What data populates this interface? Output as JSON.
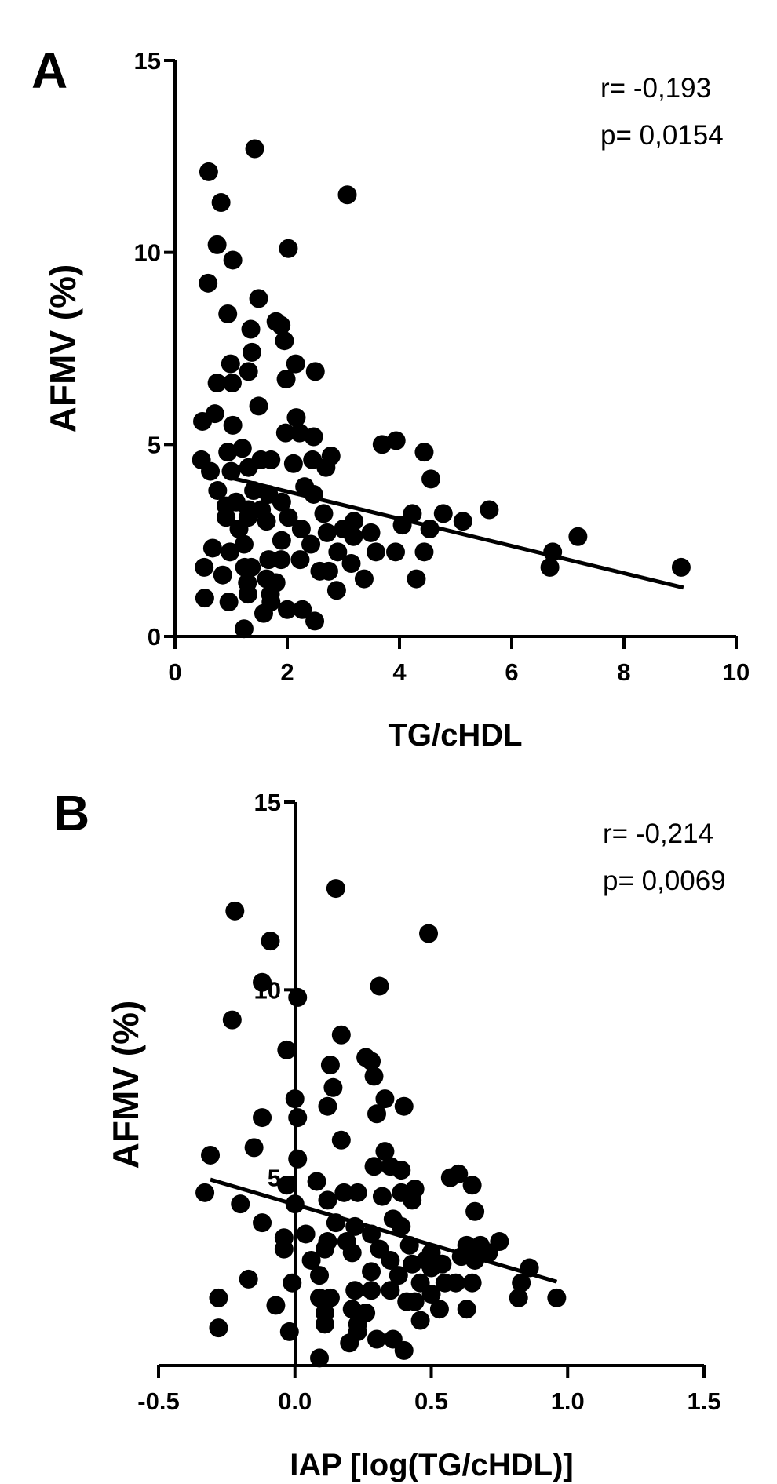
{
  "chart_data": [
    {
      "type": "scatter",
      "panel_label": "A",
      "xlabel": "TG/cHDL",
      "ylabel": "AFMV (%)",
      "xlim": [
        0,
        10
      ],
      "ylim": [
        0,
        15
      ],
      "xticks": [
        "0",
        "2",
        "4",
        "6",
        "8",
        "10"
      ],
      "yticks": [
        "0",
        "5",
        "10",
        "15"
      ],
      "stats": {
        "r": "r= -0,193",
        "p": "p= 0,0154"
      },
      "regression": {
        "x": [
          1.0,
          9.06
        ],
        "y": [
          4.13,
          1.27
        ]
      },
      "color": "#000000",
      "points": [
        [
          0.6,
          12.1
        ],
        [
          1.42,
          12.7
        ],
        [
          0.82,
          11.3
        ],
        [
          3.07,
          11.5
        ],
        [
          0.75,
          10.2
        ],
        [
          2.02,
          10.1
        ],
        [
          1.03,
          9.8
        ],
        [
          0.59,
          9.2
        ],
        [
          1.49,
          8.8
        ],
        [
          0.94,
          8.4
        ],
        [
          1.8,
          8.2
        ],
        [
          1.89,
          8.1
        ],
        [
          1.35,
          8.0
        ],
        [
          1.95,
          7.7
        ],
        [
          1.37,
          7.4
        ],
        [
          0.99,
          7.1
        ],
        [
          2.15,
          7.1
        ],
        [
          2.5,
          6.9
        ],
        [
          1.31,
          6.9
        ],
        [
          1.98,
          6.7
        ],
        [
          0.75,
          6.6
        ],
        [
          1.02,
          6.6
        ],
        [
          1.49,
          6.0
        ],
        [
          0.49,
          5.6
        ],
        [
          0.71,
          5.8
        ],
        [
          1.03,
          5.5
        ],
        [
          2.16,
          5.7
        ],
        [
          1.97,
          5.3
        ],
        [
          2.22,
          5.3
        ],
        [
          2.47,
          5.2
        ],
        [
          3.69,
          5.0
        ],
        [
          3.94,
          5.1
        ],
        [
          0.47,
          4.6
        ],
        [
          0.63,
          4.3
        ],
        [
          0.94,
          4.8
        ],
        [
          1.2,
          4.9
        ],
        [
          1.71,
          4.6
        ],
        [
          1.53,
          4.6
        ],
        [
          2.11,
          4.5
        ],
        [
          2.45,
          4.6
        ],
        [
          2.78,
          4.7
        ],
        [
          2.69,
          4.4
        ],
        [
          4.44,
          4.8
        ],
        [
          4.56,
          4.1
        ],
        [
          1.0,
          4.3
        ],
        [
          1.31,
          4.4
        ],
        [
          0.76,
          3.8
        ],
        [
          2.31,
          3.9
        ],
        [
          2.47,
          3.7
        ],
        [
          1.4,
          3.8
        ],
        [
          1.67,
          3.7
        ],
        [
          0.91,
          3.4
        ],
        [
          1.09,
          3.5
        ],
        [
          1.31,
          3.3
        ],
        [
          1.54,
          3.3
        ],
        [
          1.9,
          3.5
        ],
        [
          0.91,
          3.1
        ],
        [
          1.3,
          3.1
        ],
        [
          1.63,
          3.0
        ],
        [
          2.02,
          3.1
        ],
        [
          2.65,
          3.2
        ],
        [
          3.19,
          3.0
        ],
        [
          4.23,
          3.2
        ],
        [
          4.78,
          3.2
        ],
        [
          5.13,
          3.0
        ],
        [
          5.6,
          3.3
        ],
        [
          4.05,
          2.9
        ],
        [
          4.54,
          2.8
        ],
        [
          1.14,
          2.8
        ],
        [
          2.25,
          2.8
        ],
        [
          2.71,
          2.7
        ],
        [
          3.0,
          2.8
        ],
        [
          3.18,
          2.6
        ],
        [
          3.49,
          2.7
        ],
        [
          7.18,
          2.6
        ],
        [
          0.67,
          2.3
        ],
        [
          0.98,
          2.2
        ],
        [
          1.23,
          2.4
        ],
        [
          1.9,
          2.5
        ],
        [
          2.42,
          2.4
        ],
        [
          2.9,
          2.2
        ],
        [
          3.58,
          2.2
        ],
        [
          3.93,
          2.2
        ],
        [
          4.44,
          2.2
        ],
        [
          6.73,
          2.2
        ],
        [
          0.52,
          1.8
        ],
        [
          0.85,
          1.6
        ],
        [
          1.24,
          1.8
        ],
        [
          1.36,
          1.8
        ],
        [
          1.67,
          2.0
        ],
        [
          1.89,
          2.0
        ],
        [
          2.23,
          2.0
        ],
        [
          2.58,
          1.7
        ],
        [
          2.74,
          1.7
        ],
        [
          3.14,
          1.9
        ],
        [
          6.68,
          1.8
        ],
        [
          9.02,
          1.8
        ],
        [
          1.63,
          1.5
        ],
        [
          1.8,
          1.4
        ],
        [
          1.29,
          1.4
        ],
        [
          3.37,
          1.5
        ],
        [
          4.3,
          1.5
        ],
        [
          1.3,
          1.1
        ],
        [
          1.7,
          1.1
        ],
        [
          2.88,
          1.2
        ],
        [
          0.53,
          1.0
        ],
        [
          0.96,
          0.9
        ],
        [
          1.58,
          0.6
        ],
        [
          2.0,
          0.7
        ],
        [
          2.27,
          0.7
        ],
        [
          2.49,
          0.4
        ],
        [
          1.23,
          0.2
        ],
        [
          1.71,
          0.9
        ]
      ]
    },
    {
      "type": "scatter",
      "panel_label": "B",
      "xlabel": "IAP [log(TG/cHDL)]",
      "ylabel": "AFMV (%)",
      "xlim": [
        -0.5,
        1.5
      ],
      "ylim": [
        0,
        15
      ],
      "xticks": [
        "-0.5",
        "0.0",
        "0.5",
        "1.0",
        "1.5"
      ],
      "yticks": [
        "5",
        "10",
        "15"
      ],
      "stats": {
        "r": "r= -0,214",
        "p": "p= 0,0069"
      },
      "regression": {
        "x": [
          -0.31,
          0.96
        ],
        "y": [
          4.95,
          2.23
        ]
      },
      "color": "#000000",
      "points": [
        [
          -0.22,
          12.1
        ],
        [
          0.15,
          12.7
        ],
        [
          -0.09,
          11.3
        ],
        [
          0.49,
          11.5
        ],
        [
          -0.12,
          10.2
        ],
        [
          0.31,
          10.1
        ],
        [
          0.01,
          9.8
        ],
        [
          -0.23,
          9.2
        ],
        [
          0.17,
          8.8
        ],
        [
          -0.03,
          8.4
        ],
        [
          0.26,
          8.2
        ],
        [
          0.28,
          8.1
        ],
        [
          0.13,
          8.0
        ],
        [
          0.29,
          7.7
        ],
        [
          0.14,
          7.4
        ],
        [
          0.0,
          7.1
        ],
        [
          0.33,
          7.1
        ],
        [
          0.4,
          6.9
        ],
        [
          0.12,
          6.9
        ],
        [
          0.3,
          6.7
        ],
        [
          -0.12,
          6.6
        ],
        [
          0.01,
          6.6
        ],
        [
          0.17,
          6.0
        ],
        [
          -0.31,
          5.6
        ],
        [
          -0.15,
          5.8
        ],
        [
          0.01,
          5.5
        ],
        [
          0.33,
          5.7
        ],
        [
          0.29,
          5.3
        ],
        [
          0.35,
          5.3
        ],
        [
          0.39,
          5.2
        ],
        [
          0.57,
          5.0
        ],
        [
          0.6,
          5.1
        ],
        [
          -0.33,
          4.6
        ],
        [
          -0.2,
          4.3
        ],
        [
          -0.03,
          4.8
        ],
        [
          0.08,
          4.9
        ],
        [
          0.23,
          4.6
        ],
        [
          0.18,
          4.6
        ],
        [
          0.32,
          4.5
        ],
        [
          0.39,
          4.6
        ],
        [
          0.44,
          4.7
        ],
        [
          0.43,
          4.4
        ],
        [
          0.65,
          4.8
        ],
        [
          0.66,
          4.1
        ],
        [
          0.0,
          4.3
        ],
        [
          0.12,
          4.4
        ],
        [
          -0.12,
          3.8
        ],
        [
          0.36,
          3.9
        ],
        [
          0.39,
          3.7
        ],
        [
          0.15,
          3.8
        ],
        [
          0.22,
          3.7
        ],
        [
          -0.04,
          3.4
        ],
        [
          0.04,
          3.5
        ],
        [
          0.12,
          3.3
        ],
        [
          0.19,
          3.3
        ],
        [
          0.28,
          3.5
        ],
        [
          -0.04,
          3.1
        ],
        [
          0.11,
          3.1
        ],
        [
          0.21,
          3.0
        ],
        [
          0.31,
          3.1
        ],
        [
          0.42,
          3.2
        ],
        [
          0.5,
          3.0
        ],
        [
          0.63,
          3.2
        ],
        [
          0.68,
          3.2
        ],
        [
          0.71,
          3.0
        ],
        [
          0.75,
          3.3
        ],
        [
          0.61,
          2.9
        ],
        [
          0.66,
          2.8
        ],
        [
          0.06,
          2.8
        ],
        [
          0.35,
          2.8
        ],
        [
          0.43,
          2.7
        ],
        [
          0.48,
          2.8
        ],
        [
          0.5,
          2.6
        ],
        [
          0.54,
          2.7
        ],
        [
          0.86,
          2.6
        ],
        [
          -0.17,
          2.3
        ],
        [
          -0.01,
          2.2
        ],
        [
          0.09,
          2.4
        ],
        [
          0.28,
          2.5
        ],
        [
          0.38,
          2.4
        ],
        [
          0.46,
          2.2
        ],
        [
          0.55,
          2.2
        ],
        [
          0.59,
          2.2
        ],
        [
          0.65,
          2.2
        ],
        [
          0.83,
          2.2
        ],
        [
          -0.28,
          1.8
        ],
        [
          -0.07,
          1.6
        ],
        [
          0.09,
          1.8
        ],
        [
          0.13,
          1.8
        ],
        [
          0.22,
          2.0
        ],
        [
          0.28,
          2.0
        ],
        [
          0.35,
          2.0
        ],
        [
          0.41,
          1.7
        ],
        [
          0.44,
          1.7
        ],
        [
          0.5,
          1.9
        ],
        [
          0.82,
          1.8
        ],
        [
          0.96,
          1.8
        ],
        [
          0.21,
          1.5
        ],
        [
          0.26,
          1.4
        ],
        [
          0.11,
          1.4
        ],
        [
          0.53,
          1.5
        ],
        [
          0.63,
          1.5
        ],
        [
          0.11,
          1.1
        ],
        [
          0.23,
          1.1
        ],
        [
          0.46,
          1.2
        ],
        [
          -0.28,
          1.0
        ],
        [
          -0.02,
          0.9
        ],
        [
          0.2,
          0.6
        ],
        [
          0.3,
          0.7
        ],
        [
          0.36,
          0.7
        ],
        [
          0.4,
          0.4
        ],
        [
          0.09,
          0.2
        ],
        [
          0.23,
          0.9
        ]
      ]
    }
  ]
}
